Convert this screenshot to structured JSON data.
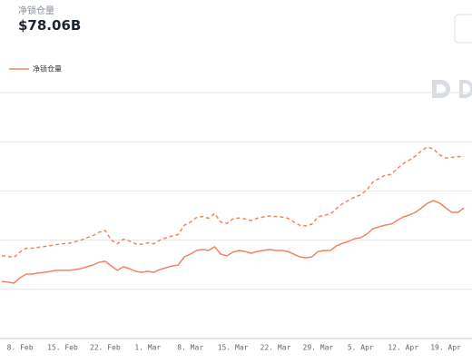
{
  "header": {
    "label": "净锁仓量",
    "value": "$78.06B"
  },
  "chart_data": {
    "type": "line",
    "categories": [
      null,
      null,
      null,
      "8. Feb",
      null,
      null,
      null,
      null,
      null,
      null,
      "15. Feb",
      null,
      null,
      null,
      null,
      null,
      null,
      "22. Feb",
      null,
      null,
      null,
      null,
      null,
      null,
      "1. Mar",
      null,
      null,
      null,
      null,
      null,
      null,
      "8. Mar",
      null,
      null,
      null,
      null,
      null,
      null,
      "15. Mar",
      null,
      null,
      null,
      null,
      null,
      null,
      "22. Mar",
      null,
      null,
      null,
      null,
      null,
      null,
      "29. Mar",
      null,
      null,
      null,
      null,
      null,
      null,
      "5. Apr",
      null,
      null,
      null,
      null,
      null,
      null,
      "12. Apr",
      null,
      null,
      null,
      null,
      null,
      null,
      "19. Apr",
      null,
      null,
      null
    ],
    "series": [
      {
        "name": "净锁仓量",
        "color": "#f2855f",
        "values": [
          23.2,
          22.9,
          22.5,
          24.7,
          26.2,
          26.2,
          26.6,
          26.9,
          27.3,
          27.7,
          27.7,
          27.7,
          28.0,
          28.4,
          29.2,
          29.9,
          31.0,
          31.4,
          29.5,
          27.7,
          29.2,
          28.4,
          27.3,
          26.9,
          27.3,
          26.9,
          28.0,
          28.8,
          29.5,
          29.9,
          33.2,
          34.3,
          35.8,
          36.2,
          35.8,
          37.3,
          34.3,
          33.6,
          35.1,
          35.8,
          35.4,
          34.7,
          35.4,
          35.8,
          36.2,
          35.8,
          35.8,
          35.4,
          34.3,
          33.2,
          32.8,
          33.2,
          35.4,
          35.8,
          35.8,
          37.6,
          38.7,
          39.5,
          40.6,
          41.0,
          42.4,
          44.6,
          45.4,
          46.1,
          46.5,
          48.0,
          49.4,
          50.2,
          51.3,
          53.1,
          55.0,
          56.1,
          55.0,
          53.1,
          51.3,
          51.3,
          53.1
        ]
      },
      {
        "color": "#f2855f",
        "dashed": true,
        "values": [
          33.7,
          33.4,
          33.0,
          35.2,
          36.7,
          36.7,
          37.1,
          37.4,
          37.8,
          38.2,
          38.5,
          38.7,
          39.3,
          40.0,
          41.0,
          41.9,
          43.2,
          43.9,
          40.0,
          38.5,
          40.4,
          39.6,
          38.5,
          38.3,
          38.9,
          38.5,
          40.0,
          41.0,
          41.7,
          42.3,
          46.0,
          47.3,
          49.2,
          49.6,
          48.9,
          50.8,
          47.3,
          46.8,
          48.6,
          49.0,
          48.6,
          48.0,
          48.9,
          49.4,
          49.8,
          49.6,
          49.4,
          48.9,
          47.4,
          46.0,
          45.8,
          46.5,
          49.4,
          50.2,
          50.5,
          52.8,
          54.8,
          56.2,
          57.5,
          58.4,
          60.3,
          63.6,
          65.0,
          66.4,
          66.7,
          69.0,
          71.1,
          72.5,
          74.2,
          76.4,
          77.9,
          77.0,
          74.6,
          73.4,
          73.6,
          74.0,
          74.0
        ]
      }
    ],
    "ylim": [
      0,
      100
    ],
    "yticks": [
      0,
      20,
      40,
      60,
      80,
      100
    ],
    "grid": true
  }
}
